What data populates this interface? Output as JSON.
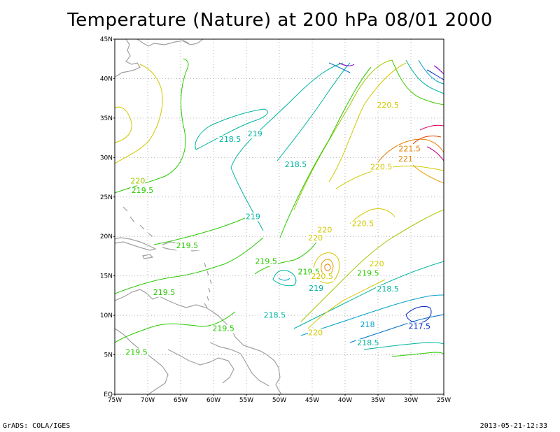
{
  "title": "Temperature (Nature) at 200 hPa 08/01 2000",
  "footer_left": "GrADS: COLA/IGES",
  "footer_right": "2013-05-21-12:33",
  "map": {
    "lon_range": [
      -75,
      -25
    ],
    "lat_range": [
      0,
      45
    ],
    "lat_ticks": [
      "45N",
      "40N",
      "35N",
      "30N",
      "25N",
      "20N",
      "15N",
      "10N",
      "5N",
      "EQ"
    ],
    "lon_ticks": [
      "75W",
      "70W",
      "65W",
      "60W",
      "55W",
      "50W",
      "45W",
      "40W",
      "35W",
      "30W",
      "25W"
    ],
    "grid": true,
    "grid_style": "dotted",
    "land_color": "#a0a0a0",
    "contour_labels": [
      {
        "text": "218.5",
        "lon": -57.5,
        "lat": 32.0,
        "color": "#00b4a0"
      },
      {
        "text": "219",
        "lon": -53.7,
        "lat": 32.7,
        "color": "#00b4a0"
      },
      {
        "text": "220.5",
        "lon": -33.5,
        "lat": 36.3,
        "color": "#d2c800"
      },
      {
        "text": "221.5",
        "lon": -30.2,
        "lat": 30.8,
        "color": "#e08000"
      },
      {
        "text": "221",
        "lon": -30.8,
        "lat": 29.5,
        "color": "#e08000"
      },
      {
        "text": "220.5",
        "lon": -34.5,
        "lat": 28.5,
        "color": "#d2c800"
      },
      {
        "text": "218.5",
        "lon": -47.5,
        "lat": 28.8,
        "color": "#00b4a0"
      },
      {
        "text": "220",
        "lon": -71.5,
        "lat": 26.7,
        "color": "#a0c800"
      },
      {
        "text": "219.5",
        "lon": -70.8,
        "lat": 25.5,
        "color": "#28c800"
      },
      {
        "text": "219",
        "lon": -54.0,
        "lat": 22.2,
        "color": "#00b4a0"
      },
      {
        "text": "220.5",
        "lon": -37.3,
        "lat": 21.3,
        "color": "#d2c800"
      },
      {
        "text": "220",
        "lon": -43.1,
        "lat": 20.5,
        "color": "#d2c800"
      },
      {
        "text": "220",
        "lon": -44.5,
        "lat": 19.5,
        "color": "#d2c800"
      },
      {
        "text": "219.5",
        "lon": -64.0,
        "lat": 18.5,
        "color": "#28c800"
      },
      {
        "text": "219.5",
        "lon": -52.0,
        "lat": 16.5,
        "color": "#28c800"
      },
      {
        "text": "220",
        "lon": -35.2,
        "lat": 16.2,
        "color": "#d2c800"
      },
      {
        "text": "219.5",
        "lon": -45.5,
        "lat": 15.2,
        "color": "#28c800"
      },
      {
        "text": "219.5",
        "lon": -36.5,
        "lat": 15.0,
        "color": "#28c800"
      },
      {
        "text": "220.5",
        "lon": -43.5,
        "lat": 14.6,
        "color": "#d2c800"
      },
      {
        "text": "218.5",
        "lon": -33.5,
        "lat": 13.0,
        "color": "#00b4a0"
      },
      {
        "text": "219",
        "lon": -44.4,
        "lat": 13.1,
        "color": "#00b4a0"
      },
      {
        "text": "219.5",
        "lon": -67.5,
        "lat": 12.6,
        "color": "#28c800"
      },
      {
        "text": "218.5",
        "lon": -50.7,
        "lat": 9.7,
        "color": "#00b4a0"
      },
      {
        "text": "218",
        "lon": -36.6,
        "lat": 8.5,
        "color": "#00a0c8"
      },
      {
        "text": "217.5",
        "lon": -28.7,
        "lat": 8.3,
        "color": "#0028c8"
      },
      {
        "text": "219.5",
        "lon": -58.5,
        "lat": 8.0,
        "color": "#28c800"
      },
      {
        "text": "220",
        "lon": -44.5,
        "lat": 7.5,
        "color": "#d2c800"
      },
      {
        "text": "218.5",
        "lon": -36.5,
        "lat": 6.2,
        "color": "#00b4a0"
      },
      {
        "text": "219.5",
        "lon": -71.7,
        "lat": 5.0,
        "color": "#28c800"
      }
    ]
  }
}
